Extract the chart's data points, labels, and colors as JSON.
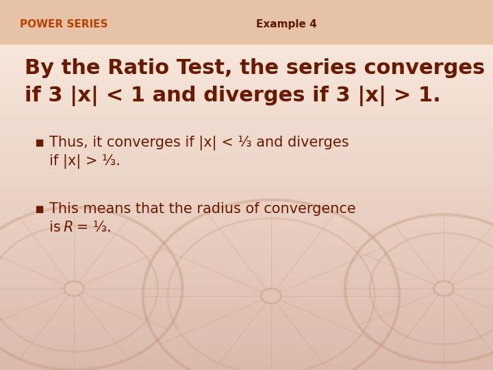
{
  "bg_color": "#f2c4a0",
  "bg_gradient_top": "#faf0e8",
  "header_bar_color": "#dba882",
  "header_left_text": "POWER SERIES",
  "header_left_color": "#b84000",
  "header_right_text": "Example 4",
  "header_right_color": "#5a1a00",
  "main_line1": "By the Ratio Test, the series converges",
  "main_line2": "if 3 |x| < 1 and diverges if 3 |x| > 1.",
  "main_text_color": "#6b1a00",
  "bullet1_line1": "Thus, it converges if |x| < ⅓ and diverges",
  "bullet1_line2": "if |x| > ⅓.",
  "bullet2_line1": "This means that the radius of convergence",
  "bullet2_line2_pre": "is ",
  "bullet2_line2_R": "R",
  "bullet2_line2_post": " = ⅓.",
  "bullet_color": "#6b1a00",
  "bullet_char": "▪",
  "main_fontsize": 22,
  "bullet_fontsize": 15,
  "header_fontsize": 11,
  "wheel_color": "#c09070",
  "wheel_alpha": 0.35
}
